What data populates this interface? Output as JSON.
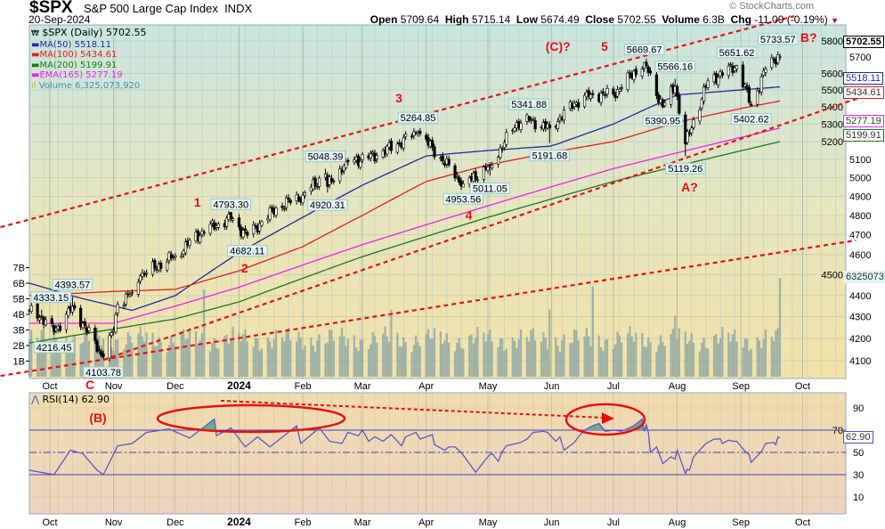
{
  "header": {
    "symbol": "$SPX",
    "name": "S&P 500 Large Cap Index",
    "exchange": "INDX",
    "date": "20-Sep-2024",
    "open_label": "Open",
    "open": "5709.64",
    "high_label": "High",
    "high": "5715.14",
    "low_label": "Low",
    "low": "5674.49",
    "close_label": "Close",
    "close": "5702.55",
    "volume_label": "Volume",
    "volume": "6.3B",
    "chg_label": "Chg",
    "chg": "-11.09 (-0.19%)",
    "copyright": "© StockCharts.com"
  },
  "legend": {
    "price": "$SPX (Daily) 5702.55",
    "ma50": "MA(50) 5518.11",
    "ma100": "MA(100) 5434.61",
    "ma200": "MA(200) 5199.91",
    "ema165": "EMA(165) 5277.19",
    "volume": "Volume 6,325,073,920"
  },
  "colors": {
    "ma50": "#1f2aa0",
    "ma100": "#e0201c",
    "ma200": "#1a7a1a",
    "ema165": "#f020f0",
    "volume": "#8fa8a4",
    "annot": "#e81010",
    "rsi": "#5050d0"
  },
  "tags": {
    "price": "5702.55",
    "ma50": "5518.11",
    "ma100": "5434.61",
    "ema165": "5277.19",
    "ma200": "5199.91",
    "volume": "6325073",
    "rsi": "62.90"
  },
  "rsi": {
    "label": "RSI(14) 62.90"
  },
  "chart_data": {
    "type": "candlestick",
    "title": "$SPX S&P 500 Large Cap Index",
    "price_axis": {
      "ticks": [
        4100,
        4200,
        4300,
        4400,
        4500,
        4600,
        4700,
        4800,
        4900,
        5000,
        5100,
        5200,
        5300,
        5400,
        5500,
        5600,
        5700,
        5800
      ],
      "scale": "log"
    },
    "volume_axis": {
      "ticks": [
        "1B",
        "2B",
        "3B",
        "4B",
        "5B",
        "6B",
        "7B"
      ]
    },
    "rsi_axis": {
      "ticks": [
        10,
        30,
        50,
        70,
        90
      ]
    },
    "x_labels": [
      [
        "2023-10-01",
        "Oct"
      ],
      [
        "2023-11-01",
        "Nov"
      ],
      [
        "2023-12-01",
        "Dec"
      ],
      [
        "2024-01-01",
        "2024"
      ],
      [
        "2024-02-01",
        "Feb"
      ],
      [
        "2024-03-01",
        "Mar"
      ],
      [
        "2024-04-01",
        "Apr"
      ],
      [
        "2024-05-01",
        "May"
      ],
      [
        "2024-06-01",
        "Jun"
      ],
      [
        "2024-07-01",
        "Jul"
      ],
      [
        "2024-08-01",
        "Aug"
      ],
      [
        "2024-09-01",
        "Sep"
      ],
      [
        "2024-10-01",
        "Oct"
      ]
    ],
    "close_keypoints": [
      [
        "2023-09-21",
        4330
      ],
      [
        "2023-09-27",
        4300
      ],
      [
        "2023-10-03",
        4229
      ],
      [
        "2023-10-12",
        4349
      ],
      [
        "2023-10-27",
        4117
      ],
      [
        "2023-11-01",
        4237
      ],
      [
        "2023-11-03",
        4358
      ],
      [
        "2023-11-10",
        4415
      ],
      [
        "2023-11-14",
        4495
      ],
      [
        "2023-12-01",
        4594
      ],
      [
        "2023-12-14",
        4719
      ],
      [
        "2023-12-28",
        4783
      ],
      [
        "2024-01-05",
        4697
      ],
      [
        "2024-01-19",
        4839
      ],
      [
        "2024-02-01",
        4906
      ],
      [
        "2024-02-12",
        5021
      ],
      [
        "2024-02-13",
        4953
      ],
      [
        "2024-02-22",
        5087
      ],
      [
        "2024-03-08",
        5123
      ],
      [
        "2024-03-28",
        5254
      ],
      [
        "2024-04-19",
        4967
      ],
      [
        "2024-05-02",
        5064
      ],
      [
        "2024-05-15",
        5308
      ],
      [
        "2024-05-21",
        5321
      ],
      [
        "2024-05-31",
        5277
      ],
      [
        "2024-06-12",
        5421
      ],
      [
        "2024-06-20",
        5473
      ],
      [
        "2024-07-01",
        5475
      ],
      [
        "2024-07-16",
        5667
      ],
      [
        "2024-07-25",
        5399
      ],
      [
        "2024-07-31",
        5522
      ],
      [
        "2024-08-05",
        5186
      ],
      [
        "2024-08-16",
        5554
      ],
      [
        "2024-08-30",
        5648
      ],
      [
        "2024-09-06",
        5408
      ],
      [
        "2024-09-13",
        5626
      ],
      [
        "2024-09-19",
        5713
      ],
      [
        "2024-09-20",
        5702.55
      ]
    ],
    "swing_labels": [
      [
        "2023-09-27",
        "4333.15",
        "above"
      ],
      [
        "2023-10-03",
        "4216.45",
        "below"
      ],
      [
        "2023-10-12",
        "4393.57",
        "above"
      ],
      [
        "2023-10-27",
        "4103.78",
        "below"
      ],
      [
        "2023-12-28",
        "4793.30",
        "above"
      ],
      [
        "2024-01-05",
        "4682.11",
        "below"
      ],
      [
        "2024-02-12",
        "5048.39",
        "above"
      ],
      [
        "2024-02-13",
        "4920.31",
        "below"
      ],
      [
        "2024-03-28",
        "5264.85",
        "above"
      ],
      [
        "2024-04-19",
        "4953.56",
        "below"
      ],
      [
        "2024-05-02",
        "5011.05",
        "below"
      ],
      [
        "2024-05-21",
        "5341.88",
        "above"
      ],
      [
        "2024-05-31",
        "5191.68",
        "below"
      ],
      [
        "2024-07-16",
        "5669.67",
        "above"
      ],
      [
        "2024-07-25",
        "5390.95",
        "below"
      ],
      [
        "2024-07-31",
        "5566.16",
        "above"
      ],
      [
        "2024-08-05",
        "5119.26",
        "below"
      ],
      [
        "2024-08-30",
        "5651.62",
        "above"
      ],
      [
        "2024-09-06",
        "5402.62",
        "below"
      ],
      [
        "2024-09-19",
        "5733.57",
        "above"
      ]
    ],
    "series": [
      {
        "name": "MA(50)",
        "key": "ma50",
        "points": [
          [
            "2023-09-21",
            4460
          ],
          [
            "2023-10-15",
            4390
          ],
          [
            "2023-11-10",
            4330
          ],
          [
            "2023-12-01",
            4400
          ],
          [
            "2024-01-01",
            4610
          ],
          [
            "2024-02-01",
            4790
          ],
          [
            "2024-03-01",
            4960
          ],
          [
            "2024-04-01",
            5120
          ],
          [
            "2024-05-01",
            5150
          ],
          [
            "2024-06-01",
            5175
          ],
          [
            "2024-07-01",
            5300
          ],
          [
            "2024-08-01",
            5470
          ],
          [
            "2024-09-01",
            5500
          ],
          [
            "2024-09-20",
            5518.11
          ]
        ]
      },
      {
        "name": "MA(100)",
        "key": "ma100",
        "points": [
          [
            "2023-09-21",
            4400
          ],
          [
            "2023-11-01",
            4420
          ],
          [
            "2023-12-01",
            4430
          ],
          [
            "2024-01-01",
            4520
          ],
          [
            "2024-02-01",
            4640
          ],
          [
            "2024-03-01",
            4800
          ],
          [
            "2024-04-01",
            4980
          ],
          [
            "2024-05-01",
            5070
          ],
          [
            "2024-06-01",
            5140
          ],
          [
            "2024-07-01",
            5200
          ],
          [
            "2024-08-01",
            5310
          ],
          [
            "2024-09-01",
            5390
          ],
          [
            "2024-09-20",
            5434.61
          ]
        ]
      },
      {
        "name": "MA(200)",
        "key": "ma200",
        "points": [
          [
            "2023-09-21",
            4180
          ],
          [
            "2023-12-01",
            4290
          ],
          [
            "2024-01-01",
            4370
          ],
          [
            "2024-03-01",
            4590
          ],
          [
            "2024-05-01",
            4790
          ],
          [
            "2024-07-01",
            4980
          ],
          [
            "2024-09-20",
            5199.91
          ]
        ]
      },
      {
        "name": "EMA(165)",
        "key": "ema165",
        "points": [
          [
            "2023-09-21",
            4270
          ],
          [
            "2023-11-01",
            4270
          ],
          [
            "2023-12-01",
            4350
          ],
          [
            "2024-01-01",
            4440
          ],
          [
            "2024-03-01",
            4650
          ],
          [
            "2024-05-01",
            4850
          ],
          [
            "2024-07-01",
            5050
          ],
          [
            "2024-09-20",
            5277.19
          ]
        ]
      }
    ],
    "volume": {
      "base_billions": 2.4,
      "spikes": [
        [
          "2023-12-15",
          5.6
        ],
        [
          "2024-03-15",
          4.3
        ],
        [
          "2024-05-31",
          4.3
        ],
        [
          "2024-06-21",
          5.8
        ],
        [
          "2024-07-31",
          3.9
        ],
        [
          "2024-09-20",
          6.33
        ]
      ]
    },
    "rsi_points": [
      [
        "2023-09-21",
        34
      ],
      [
        "2023-10-03",
        30
      ],
      [
        "2023-10-11",
        52
      ],
      [
        "2023-10-17",
        49
      ],
      [
        "2023-10-24",
        34
      ],
      [
        "2023-10-27",
        30
      ],
      [
        "2023-11-03",
        56
      ],
      [
        "2023-11-10",
        58
      ],
      [
        "2023-11-17",
        68
      ],
      [
        "2023-11-28",
        71
      ],
      [
        "2023-12-08",
        63
      ],
      [
        "2023-12-20",
        80
      ],
      [
        "2023-12-21",
        65
      ],
      [
        "2023-12-28",
        72
      ],
      [
        "2024-01-04",
        55
      ],
      [
        "2024-01-10",
        64
      ],
      [
        "2024-01-16",
        55
      ],
      [
        "2024-01-29",
        74
      ],
      [
        "2024-01-31",
        58
      ],
      [
        "2024-02-09",
        72
      ],
      [
        "2024-02-14",
        60
      ],
      [
        "2024-02-20",
        58
      ],
      [
        "2024-02-23",
        68
      ],
      [
        "2024-02-28",
        65
      ],
      [
        "2024-03-01",
        70
      ],
      [
        "2024-03-04",
        60
      ],
      [
        "2024-03-07",
        64
      ],
      [
        "2024-03-11",
        60
      ],
      [
        "2024-03-15",
        66
      ],
      [
        "2024-03-20",
        56
      ],
      [
        "2024-03-22",
        64
      ],
      [
        "2024-03-27",
        68
      ],
      [
        "2024-03-29",
        62
      ],
      [
        "2024-04-04",
        66
      ],
      [
        "2024-04-05",
        57
      ],
      [
        "2024-04-10",
        52
      ],
      [
        "2024-04-12",
        55
      ],
      [
        "2024-04-15",
        55
      ],
      [
        "2024-04-18",
        50
      ],
      [
        "2024-04-22",
        40
      ],
      [
        "2024-04-25",
        32
      ],
      [
        "2024-04-30",
        44
      ],
      [
        "2024-05-02",
        48
      ],
      [
        "2024-05-03",
        49
      ],
      [
        "2024-05-06",
        42
      ],
      [
        "2024-05-08",
        51
      ],
      [
        "2024-05-10",
        56
      ],
      [
        "2024-05-17",
        59
      ],
      [
        "2024-05-20",
        62
      ],
      [
        "2024-05-23",
        68
      ],
      [
        "2024-05-28",
        69
      ],
      [
        "2024-05-30",
        68
      ],
      [
        "2024-06-03",
        60
      ],
      [
        "2024-06-05",
        64
      ],
      [
        "2024-06-07",
        52
      ],
      [
        "2024-06-12",
        59
      ],
      [
        "2024-06-14",
        64
      ],
      [
        "2024-06-17",
        70
      ],
      [
        "2024-06-21",
        74
      ],
      [
        "2024-06-24",
        76
      ],
      [
        "2024-06-27",
        69
      ],
      [
        "2024-07-01",
        70
      ],
      [
        "2024-07-05",
        69
      ],
      [
        "2024-07-11",
        74
      ],
      [
        "2024-07-15",
        80
      ],
      [
        "2024-07-16",
        69
      ],
      [
        "2024-07-17",
        75
      ],
      [
        "2024-07-18",
        68
      ],
      [
        "2024-07-19",
        50
      ],
      [
        "2024-07-22",
        55
      ],
      [
        "2024-07-25",
        40
      ],
      [
        "2024-07-29",
        46
      ],
      [
        "2024-07-31",
        44
      ],
      [
        "2024-08-01",
        52
      ],
      [
        "2024-08-05",
        31
      ],
      [
        "2024-08-06",
        35
      ],
      [
        "2024-08-07",
        34
      ],
      [
        "2024-08-09",
        46
      ],
      [
        "2024-08-15",
        58
      ],
      [
        "2024-08-19",
        62
      ],
      [
        "2024-08-22",
        62
      ],
      [
        "2024-08-23",
        58
      ],
      [
        "2024-08-26",
        61
      ],
      [
        "2024-08-28",
        60
      ],
      [
        "2024-08-30",
        60
      ],
      [
        "2024-09-03",
        51
      ],
      [
        "2024-09-05",
        48
      ],
      [
        "2024-09-06",
        41
      ],
      [
        "2024-09-11",
        51
      ],
      [
        "2024-09-13",
        58
      ],
      [
        "2024-09-17",
        59
      ],
      [
        "2024-09-18",
        57
      ],
      [
        "2024-09-19",
        64
      ],
      [
        "2024-09-20",
        62.9
      ]
    ],
    "trendlines": [
      [
        [
          "2023-09-07",
          4739
        ],
        [
          "2024-09-27",
          5959
        ]
      ],
      [
        [
          "2023-10-27",
          4103.78
        ],
        [
          "2024-11-06",
          5489
        ]
      ],
      [
        [
          "2023-09-07",
          4033
        ],
        [
          "2024-10-27",
          4672
        ]
      ]
    ],
    "wave_labels": [
      [
        "2023-12-10",
        4845,
        "1"
      ],
      [
        "2024-01-02",
        4574,
        "2"
      ],
      [
        "2024-03-17",
        5426,
        "3"
      ],
      [
        "2024-04-20",
        4843,
        "4"
      ],
      [
        "2024-05-29",
        5739,
        "(C)?"
      ],
      [
        "2024-06-25",
        5739,
        "5"
      ],
      [
        "2024-08-03",
        4965,
        "A?"
      ],
      [
        "2024-09-29",
        5795,
        "B?"
      ]
    ],
    "below_axis_labels": {
      "c": "C",
      "b": "(B)"
    }
  }
}
